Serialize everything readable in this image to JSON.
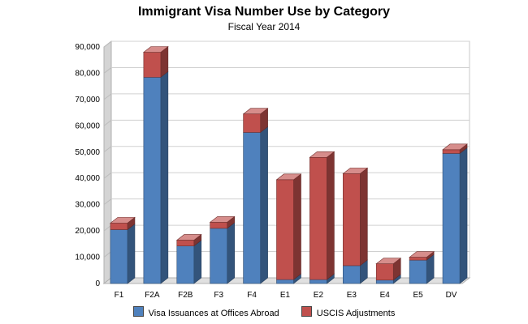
{
  "chart_data": {
    "type": "bar",
    "stacked": true,
    "title": "Immigrant Visa Number Use by Category",
    "subtitle": "Fiscal Year 2014",
    "categories": [
      "F1",
      "F2A",
      "F2B",
      "F3",
      "F4",
      "E1",
      "E2",
      "E3",
      "E4",
      "E5",
      "DV"
    ],
    "series": [
      {
        "name": "Visa Issuances at Offices Abroad",
        "color": "#4f81bd",
        "values": [
          20500,
          78500,
          14300,
          21000,
          57500,
          1500,
          1500,
          6800,
          1300,
          8900,
          49500
        ]
      },
      {
        "name": "USCIS Adjustments",
        "color": "#c0504d",
        "values": [
          2500,
          9500,
          2200,
          2300,
          7000,
          38000,
          46500,
          35000,
          6200,
          1100,
          1400
        ]
      }
    ],
    "ylim": [
      0,
      90000
    ],
    "yticks": [
      "0",
      "10,000",
      "20,000",
      "30,000",
      "40,000",
      "50,000",
      "60,000",
      "70,000",
      "80,000",
      "90,000"
    ],
    "grid": true,
    "legend_position": "bottom"
  }
}
